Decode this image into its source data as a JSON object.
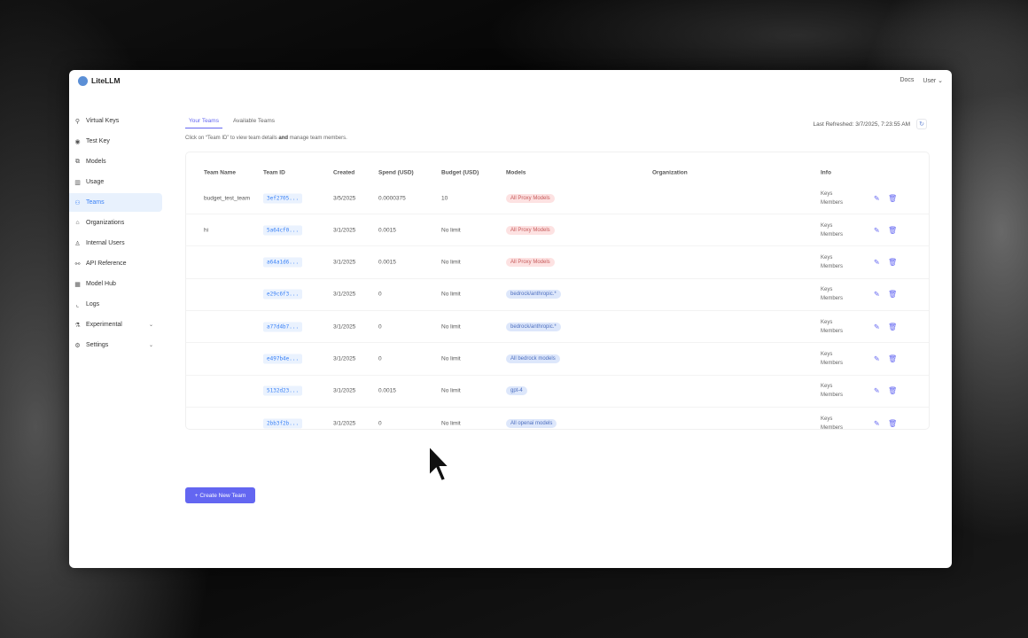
{
  "app": {
    "name": "LiteLLM"
  },
  "header": {
    "docs": "Docs",
    "user": "User"
  },
  "sidebar": {
    "items": [
      {
        "label": "Virtual Keys",
        "icon": "search-icon"
      },
      {
        "label": "Test Key",
        "icon": "play-circle-icon"
      },
      {
        "label": "Models",
        "icon": "block-icon"
      },
      {
        "label": "Usage",
        "icon": "bar-chart-icon"
      },
      {
        "label": "Teams",
        "icon": "team-icon",
        "active": true
      },
      {
        "label": "Organizations",
        "icon": "bank-icon"
      },
      {
        "label": "Internal Users",
        "icon": "user-icon"
      },
      {
        "label": "API Reference",
        "icon": "api-icon"
      },
      {
        "label": "Model Hub",
        "icon": "apps-icon"
      },
      {
        "label": "Logs",
        "icon": "line-chart-icon"
      },
      {
        "label": "Experimental",
        "icon": "experiment-icon",
        "expandable": true
      },
      {
        "label": "Settings",
        "icon": "gear-icon",
        "expandable": true
      }
    ]
  },
  "tabs": [
    "Your Teams",
    "Available Teams"
  ],
  "hint": {
    "pre": "Click on “Team ID” to view team details ",
    "bold": "and",
    "post": " manage team members."
  },
  "refresh": {
    "label": "Last Refreshed: 3/7/2025, 7:23:55 AM"
  },
  "table": {
    "columns": [
      "Team Name",
      "Team ID",
      "Created",
      "Spend (USD)",
      "Budget (USD)",
      "Models",
      "Organization",
      "Info"
    ],
    "info_labels": [
      "Keys",
      "Members"
    ],
    "rows": [
      {
        "name": "budget_test_team",
        "id": "3ef2705...",
        "created": "3/5/2025",
        "spend": "0.0000375",
        "budget": "10",
        "model": "All Proxy Models",
        "tone": "red"
      },
      {
        "name": "hi",
        "id": "5a64cf0...",
        "created": "3/1/2025",
        "spend": "0.0015",
        "budget": "No limit",
        "model": "All Proxy Models",
        "tone": "red"
      },
      {
        "name": "",
        "id": "a64a1d6...",
        "created": "3/1/2025",
        "spend": "0.0015",
        "budget": "No limit",
        "model": "All Proxy Models",
        "tone": "red"
      },
      {
        "name": "",
        "id": "e29c6f3...",
        "created": "3/1/2025",
        "spend": "0",
        "budget": "No limit",
        "model": "bedrock/anthropic.*",
        "tone": "blue"
      },
      {
        "name": "",
        "id": "a77d4b7...",
        "created": "3/1/2025",
        "spend": "0",
        "budget": "No limit",
        "model": "bedrock/anthropic.*",
        "tone": "blue"
      },
      {
        "name": "",
        "id": "e497b4e...",
        "created": "3/1/2025",
        "spend": "0",
        "budget": "No limit",
        "model": "All bedrock models",
        "tone": "blue"
      },
      {
        "name": "",
        "id": "5132d23...",
        "created": "3/1/2025",
        "spend": "0.0015",
        "budget": "No limit",
        "model": "gpt-4",
        "tone": "blue"
      },
      {
        "name": "",
        "id": "2bb3f2b...",
        "created": "3/1/2025",
        "spend": "0",
        "budget": "No limit",
        "model": "All openai models",
        "tone": "blue"
      }
    ]
  },
  "create_button": "+ Create New Team",
  "colors": {
    "accent": "#6366f1",
    "link": "#3b82f6"
  }
}
